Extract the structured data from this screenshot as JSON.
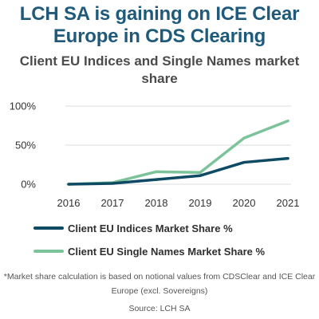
{
  "colors": {
    "title": "#1f5a7a",
    "indices_series": "#0e4a63",
    "single_names_series": "#7cc39a"
  },
  "chart_data": {
    "type": "line",
    "title": "LCH SA is gaining on ICE Clear Europe in CDS Clearing",
    "subtitle": "Client EU Indices and Single Names market share",
    "x": [
      "2016",
      "2017",
      "2018",
      "2019",
      "2020",
      "2021"
    ],
    "ylim": [
      0,
      100
    ],
    "yticks": [
      "0%",
      "50%",
      "100%"
    ],
    "series": [
      {
        "name": "Client EU Indices Market Share %",
        "values": [
          0,
          1,
          6,
          11,
          28,
          33
        ]
      },
      {
        "name": "Client EU Single Names Market Share %",
        "values": [
          0,
          2,
          16,
          15,
          59,
          81
        ]
      }
    ],
    "grid": "horizontal",
    "legend_position": "bottom",
    "footnote": "*Market share calculation is based on notional values from CDSClear and ICE Clear Europe (excl. Sovereigns)",
    "source": "Source: LCH SA"
  }
}
